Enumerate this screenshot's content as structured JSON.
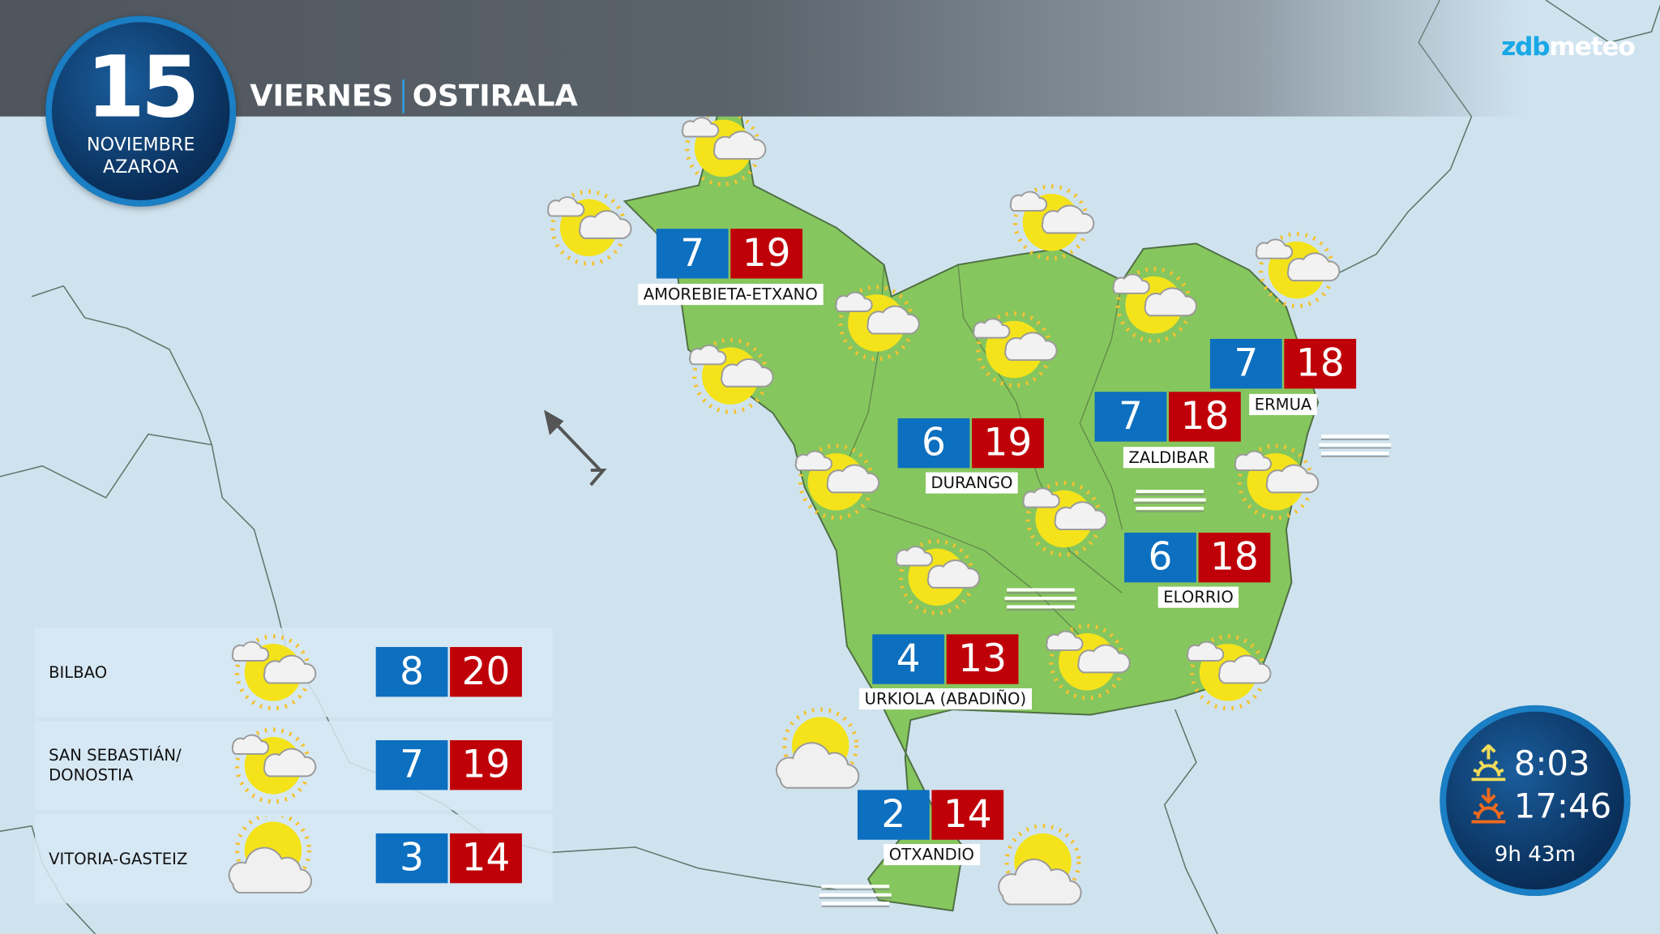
{
  "header": {
    "day_number": "15",
    "month_es": "NOVIEMBRE",
    "month_eu": "AZAROA",
    "weekday_es": "VIERNES",
    "weekday_eu": "OSTIRALA"
  },
  "logo": {
    "part1": "zdb",
    "part2": "meteo"
  },
  "colors": {
    "min_temp": "#0d6fbf",
    "max_temp": "#c00008",
    "land": "#86c65e",
    "sea": "#cfe3ef",
    "accent": "#18a8e6"
  },
  "map_locations": [
    {
      "name": "AMOREBIETA-ETXANO",
      "min": "7",
      "max": "19"
    },
    {
      "name": "ERMUA",
      "min": "7",
      "max": "18"
    },
    {
      "name": "ZALDIBAR",
      "min": "7",
      "max": "18"
    },
    {
      "name": "DURANGO",
      "min": "6",
      "max": "19"
    },
    {
      "name": "ELORRIO",
      "min": "6",
      "max": "18"
    },
    {
      "name": "URKIOLA (ABADIÑO)",
      "min": "4",
      "max": "13"
    },
    {
      "name": "OTXANDIO",
      "min": "2",
      "max": "14"
    }
  ],
  "cities": [
    {
      "name": "BILBAO",
      "icon": "sun-cloud-icon",
      "min": "8",
      "max": "20"
    },
    {
      "name": "SAN SEBASTIÁN/\nDONOSTIA",
      "icon": "sun-cloud-icon",
      "min": "7",
      "max": "19"
    },
    {
      "name": "VITORIA-GASTEIZ",
      "icon": "cloudy-sun-icon",
      "min": "3",
      "max": "14"
    }
  ],
  "sun": {
    "sunrise": "8:03",
    "sunset": "17:46",
    "day_length": "9h 43m"
  }
}
